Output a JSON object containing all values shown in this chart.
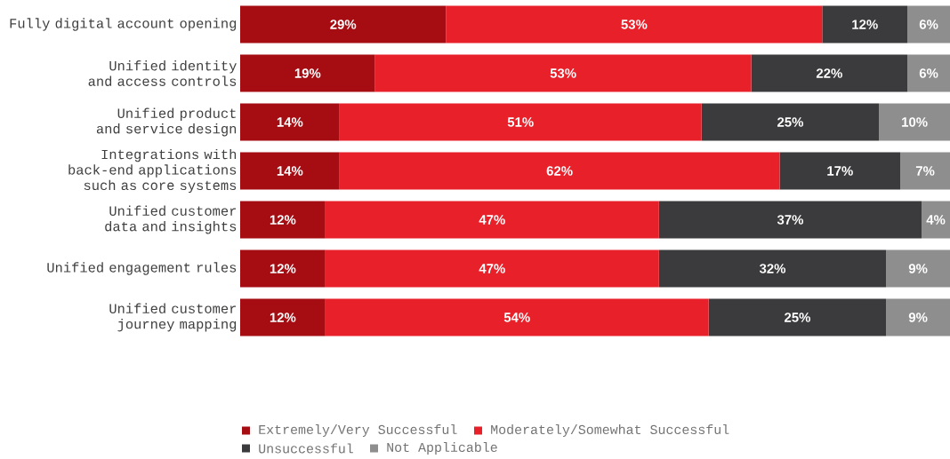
{
  "chart_data": {
    "type": "bar",
    "orientation": "horizontal",
    "stacked": true,
    "categories": [
      "Fully digital account opening",
      "Unified identity and access controls",
      "Unified product and service design",
      "Integrations with back-end applications such as core systems",
      "Unified customer data and insights",
      "Unified engagement rules",
      "Unified customer journey mapping"
    ],
    "series": [
      {
        "name": "Extremely/Very Successful",
        "color": "#a50d12",
        "values": [
          29,
          19,
          14,
          14,
          12,
          12,
          12
        ],
        "value_labels": [
          "29%",
          "19%",
          "14%",
          "14%",
          "12%",
          "12%",
          "12%"
        ]
      },
      {
        "name": "Moderately/Somewhat Successful",
        "color": "#e8202a",
        "values": [
          53,
          53,
          51,
          62,
          47,
          47,
          54
        ],
        "value_labels": [
          "53%",
          "53%",
          "51%",
          "62%",
          "47%",
          "47%",
          "54%"
        ]
      },
      {
        "name": "Unsuccessful",
        "color": "#3b3b3d",
        "values": [
          12,
          22,
          25,
          17,
          37,
          32,
          25
        ],
        "value_labels": [
          "12%",
          "22%",
          "25%",
          "17%",
          "37%",
          "32%",
          "25%"
        ]
      },
      {
        "name": "Not Applicable",
        "color": "#8e8e8e",
        "values": [
          6,
          6,
          10,
          7,
          4,
          9,
          9
        ],
        "value_labels": [
          "6%",
          "6%",
          "10%",
          "7%",
          "4%",
          "9%",
          "9%"
        ]
      }
    ],
    "xlim": [
      0,
      100
    ],
    "tick_labels": "y",
    "legend": "bottom"
  }
}
